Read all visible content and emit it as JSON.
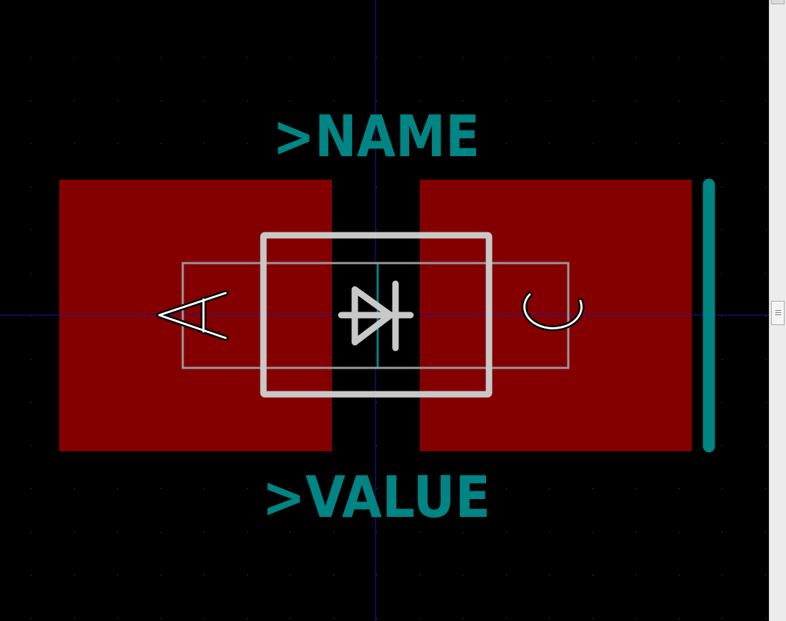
{
  "footprint": {
    "name_text": ">NAME",
    "value_text": ">VALUE",
    "pad_labels": [
      "A",
      "C"
    ]
  },
  "colors": {
    "background": "#000000",
    "copper_pad": "#840000",
    "silkscreen": "#c8c8c8",
    "fab_outline": "#a0a0a0",
    "reference_text": "#008484",
    "axis": "#000084",
    "grid_dot": "#555555"
  },
  "icons": {
    "diode_symbol": "diode-icon",
    "cathode_bar": "cathode-bar-icon"
  }
}
